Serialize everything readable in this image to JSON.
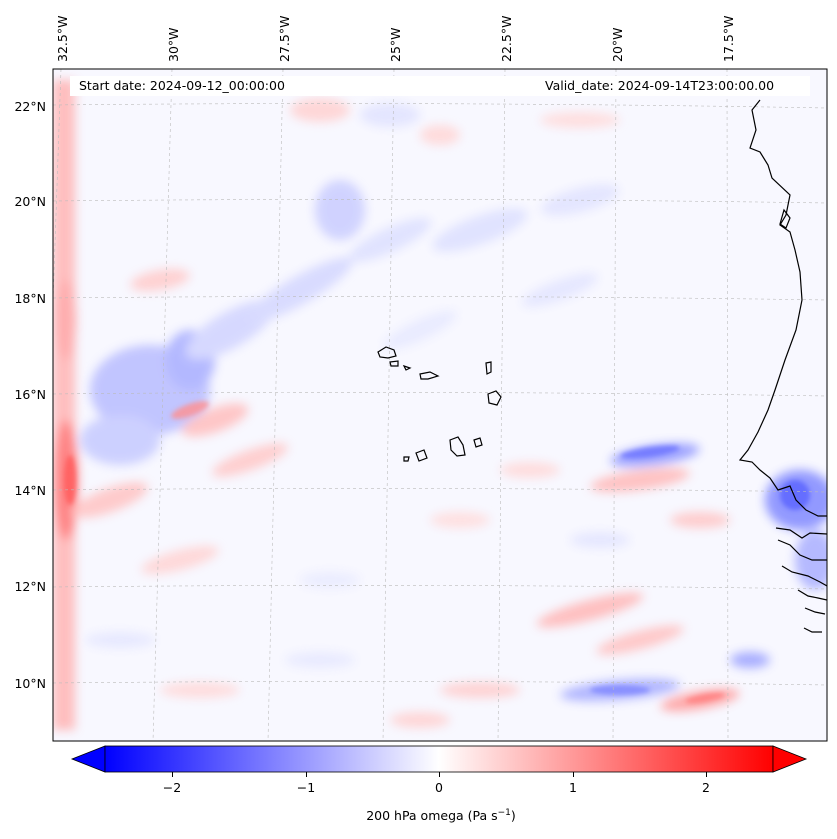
{
  "map": {
    "start_date": "Start date: 2024-09-12_00:00:00",
    "valid_date": "Valid_date: 2024-09-14T23:00:00.00",
    "lon_labels": [
      "32.5°W",
      "30°W",
      "27.5°W",
      "25°W",
      "22.5°W",
      "20°W",
      "17.5°W"
    ],
    "lat_labels": [
      "22°N",
      "20°N",
      "18°N",
      "16°N",
      "14°N",
      "12°N",
      "10°N"
    ],
    "colors": {
      "negative": "#0000ff",
      "positive": "#ff0000",
      "zero": "#ffffff",
      "coastline": "#000000",
      "gridline": "#bbbbbb"
    }
  },
  "colorbar": {
    "ticks": [
      "−2",
      "−1",
      "0",
      "1",
      "2"
    ],
    "label": "200 hPa omega (Pa s",
    "label_sup": "−1",
    "label_end": ")",
    "range": [
      -2.5,
      2.5
    ]
  }
}
